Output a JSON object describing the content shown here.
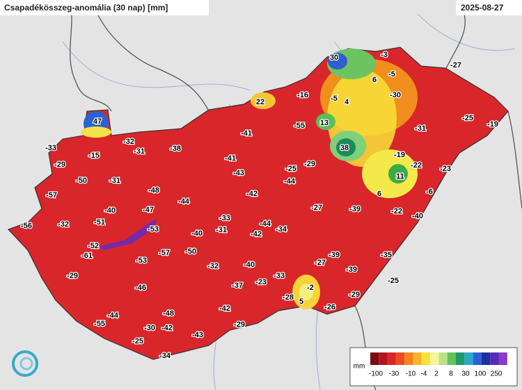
{
  "header": {
    "title": "Csapadékösszeg-anomália (30 nap) [mm]",
    "date": "2025-08-27"
  },
  "stations": [
    30,
    -3,
    6,
    -5,
    -27,
    -30,
    -16,
    -5,
    4,
    22,
    13,
    -55,
    -31,
    -25,
    -19,
    47,
    -41,
    38,
    -33,
    -32,
    -15,
    -31,
    -38,
    -41,
    -19,
    -22,
    -23,
    -29,
    -29,
    -25,
    -43,
    11,
    -50,
    -31,
    -44,
    6,
    -6,
    -57,
    -48,
    -42,
    -44,
    -40,
    -47,
    -27,
    -39,
    -22,
    -40,
    -56,
    -32,
    -51,
    -53,
    -33,
    -44,
    -34,
    -42,
    -40,
    -31,
    -52,
    -61,
    -57,
    -50,
    -53,
    -35,
    -39,
    -27,
    -32,
    -40,
    -39,
    -29,
    -33,
    -37,
    -23,
    -46,
    -2,
    -25,
    -28,
    5,
    -29,
    -26,
    -42,
    -48,
    -44,
    -55,
    -30,
    -42,
    -29,
    -43,
    -25,
    -34
  ],
  "legend": {
    "unit": "mm",
    "labels": [
      -100,
      -30,
      -10,
      -4,
      2,
      8,
      30,
      100,
      250
    ]
  }
}
